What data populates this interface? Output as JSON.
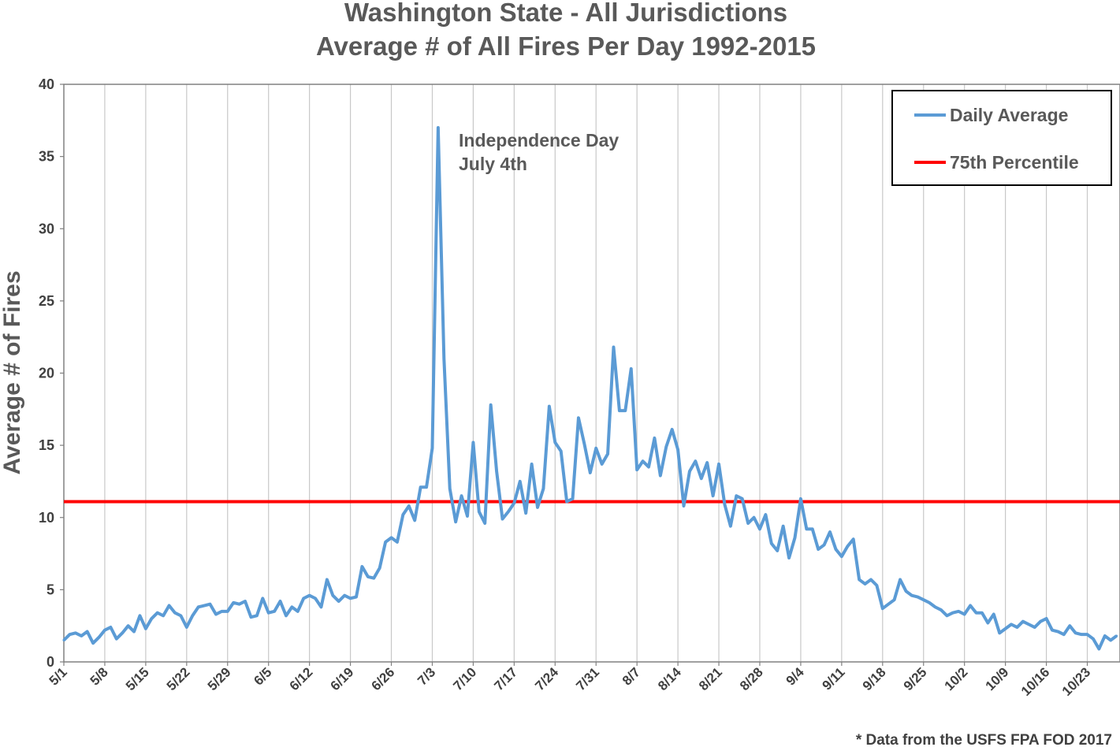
{
  "chart_data": {
    "type": "line",
    "title_line1": "Washington State - All Jurisdictions",
    "title_line2": "Average # of All Fires Per Day 1992-2015",
    "xlabel": "",
    "ylabel": "Average # of Fires",
    "ylim": [
      0,
      40
    ],
    "yticks": [
      0,
      5,
      10,
      15,
      20,
      25,
      30,
      35,
      40
    ],
    "grid": "vertical",
    "legend_position": "top-right",
    "x_tick_labels": [
      "5/1",
      "5/8",
      "5/15",
      "5/22",
      "5/29",
      "6/5",
      "6/12",
      "6/19",
      "6/26",
      "7/3",
      "7/10",
      "7/17",
      "7/24",
      "7/31",
      "8/7",
      "8/14",
      "8/21",
      "8/28",
      "9/4",
      "9/11",
      "9/18",
      "9/25",
      "10/2",
      "10/9",
      "10/16",
      "10/23"
    ],
    "x_start": "5/1",
    "series": [
      {
        "name": "Daily Average",
        "color": "#5B9BD5",
        "values": [
          1.5,
          1.9,
          2.0,
          1.8,
          2.1,
          1.3,
          1.7,
          2.2,
          2.4,
          1.6,
          2.0,
          2.5,
          2.1,
          3.2,
          2.3,
          3.0,
          3.4,
          3.2,
          3.9,
          3.4,
          3.2,
          2.4,
          3.2,
          3.8,
          3.9,
          4.0,
          3.3,
          3.5,
          3.5,
          4.1,
          4.0,
          4.2,
          3.1,
          3.2,
          4.4,
          3.4,
          3.5,
          4.2,
          3.2,
          3.8,
          3.5,
          4.4,
          4.6,
          4.4,
          3.8,
          5.7,
          4.6,
          4.2,
          4.6,
          4.4,
          4.5,
          6.6,
          5.9,
          5.8,
          6.5,
          8.3,
          8.6,
          8.3,
          10.2,
          10.8,
          9.8,
          12.1,
          12.1,
          14.8,
          37.0,
          21.0,
          12.0,
          9.7,
          11.5,
          10.1,
          15.2,
          10.4,
          9.6,
          17.8,
          13.2,
          9.9,
          10.4,
          11.0,
          12.5,
          10.3,
          13.7,
          10.7,
          12.0,
          17.7,
          15.2,
          14.6,
          11.1,
          11.3,
          16.9,
          15.1,
          13.1,
          14.8,
          13.7,
          14.4,
          21.8,
          17.4,
          17.4,
          20.3,
          13.3,
          13.9,
          13.5,
          15.5,
          12.9,
          14.9,
          16.1,
          14.7,
          10.8,
          13.2,
          13.9,
          12.7,
          13.8,
          11.5,
          13.7,
          10.9,
          9.4,
          11.5,
          11.3,
          9.6,
          10.0,
          9.2,
          10.2,
          8.2,
          7.7,
          9.4,
          7.2,
          8.6,
          11.3,
          9.2,
          9.2,
          7.8,
          8.1,
          9.0,
          7.8,
          7.3,
          8.0,
          8.5,
          5.7,
          5.4,
          5.7,
          5.3,
          3.7,
          4.0,
          4.3,
          5.7,
          4.9,
          4.6,
          4.5,
          4.3,
          4.1,
          3.8,
          3.6,
          3.2,
          3.4,
          3.5,
          3.3,
          3.9,
          3.4,
          3.4,
          2.7,
          3.3,
          2.0,
          2.3,
          2.6,
          2.4,
          2.8,
          2.6,
          2.4,
          2.8,
          3.0,
          2.2,
          2.1,
          1.9,
          2.5,
          2.0,
          1.9,
          1.9,
          1.6,
          0.9,
          1.8,
          1.5,
          1.8
        ]
      },
      {
        "name": "75th Percentile",
        "color": "#FF0000",
        "constant": 11.1
      }
    ],
    "annotation_line1": "Independence Day",
    "annotation_line2": "July 4th"
  },
  "footnote": "* Data from the USFS FPA FOD 2017"
}
